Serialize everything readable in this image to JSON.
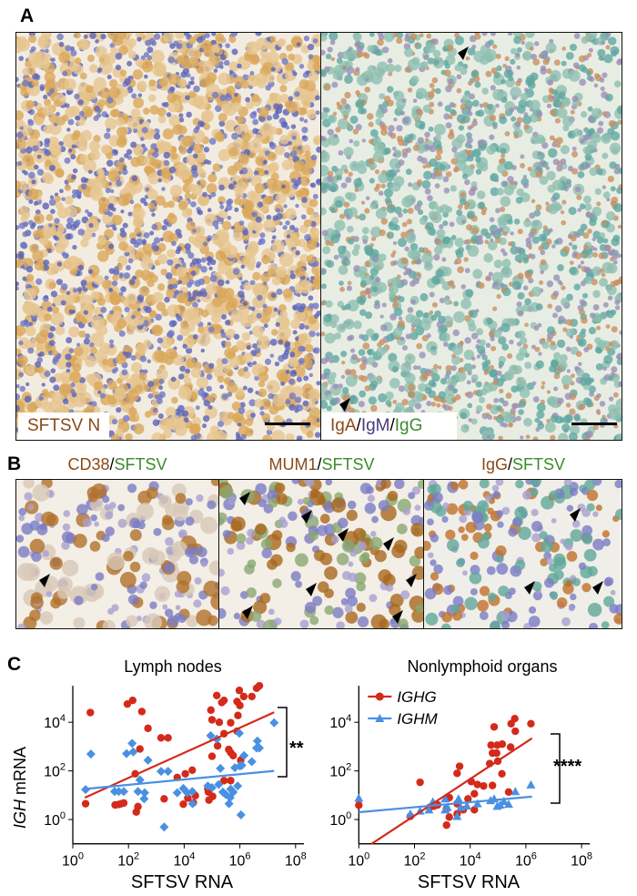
{
  "panels": {
    "A": {
      "label": "A",
      "left_tag": "SFTSV N",
      "right_tag": {
        "a": "IgA",
        "sep1": "/",
        "m": "IgM",
        "sep2": "/",
        "g": "IgG"
      }
    },
    "B": {
      "label": "B",
      "images": [
        {
          "marker": "CD38",
          "sep": "/",
          "virus": "SFTSV"
        },
        {
          "marker": "MUM1",
          "sep": "/",
          "virus": "SFTSV"
        },
        {
          "marker": "IgG",
          "sep": "/",
          "virus": "SFTSV"
        }
      ]
    },
    "C": {
      "label": "C"
    }
  },
  "colors": {
    "IGHG": "#d42a1a",
    "IGHM": "#4a90e2",
    "stain_brown": "#8a4a17",
    "stain_green": "#3d8a2e"
  },
  "chart_data": [
    {
      "type": "scatter",
      "title": "Lymph nodes",
      "xlabel": "SFTSV RNA",
      "ylabel_italic": "IGH",
      "ylabel_rest": " mRNA",
      "xscale": "log",
      "yscale": "log",
      "xlim_log10": [
        0,
        8
      ],
      "ylim_log10": [
        -1,
        5.5
      ],
      "xticks": [
        {
          "exp": "0"
        },
        {
          "exp": "2"
        },
        {
          "exp": "4"
        },
        {
          "exp": "6"
        },
        {
          "exp": "8"
        }
      ],
      "yticks": [
        {
          "exp": "0"
        },
        {
          "exp": "2"
        },
        {
          "exp": "4"
        }
      ],
      "significance": "**",
      "legend": null,
      "series": [
        {
          "name": "IGHG",
          "marker": "circle",
          "color": "#d42a1a",
          "fit_log10": [
            [
              0.43,
              0.9
            ],
            [
              7.23,
              4.41
            ]
          ],
          "points_log10": [
            [
              0.46,
              0.65
            ],
            [
              0.63,
              4.4
            ],
            [
              1.96,
              4.75
            ],
            [
              2.15,
              4.9
            ],
            [
              2.48,
              4.44
            ],
            [
              2.7,
              3.75
            ],
            [
              3.17,
              3.36
            ],
            [
              3.42,
              3.36
            ],
            [
              2.41,
              2.9
            ],
            [
              2.24,
              1.88
            ],
            [
              2.34,
              0.53
            ],
            [
              2.28,
              0.31
            ],
            [
              1.52,
              0.6
            ],
            [
              1.65,
              0.62
            ],
            [
              1.74,
              0.65
            ],
            [
              1.83,
              0.68
            ],
            [
              3.28,
              0.85
            ],
            [
              3.75,
              1.73
            ],
            [
              4.04,
              1.88
            ],
            [
              4.29,
              2.03
            ],
            [
              3.97,
              0.63
            ],
            [
              4.13,
              0.88
            ],
            [
              4.33,
              0.69
            ],
            [
              4.4,
              0.98
            ],
            [
              4.85,
              1.25
            ],
            [
              4.87,
              1.13
            ],
            [
              4.89,
              0.8
            ],
            [
              5.02,
              0.95
            ],
            [
              4.96,
              4.5
            ],
            [
              5.0,
              4.1
            ],
            [
              5.26,
              4.0
            ],
            [
              5.17,
              5.1
            ],
            [
              5.35,
              4.81
            ],
            [
              5.43,
              4.9
            ],
            [
              5.2,
              3.03
            ],
            [
              5.0,
              2.6
            ],
            [
              5.43,
              3.53
            ],
            [
              5.6,
              2.88
            ],
            [
              5.67,
              2.75
            ],
            [
              5.76,
              2.63
            ],
            [
              5.67,
              3.98
            ],
            [
              5.9,
              4.85
            ],
            [
              5.98,
              5.31
            ],
            [
              6.0,
              4.69
            ],
            [
              5.93,
              4.28
            ],
            [
              5.9,
              3.63
            ],
            [
              5.43,
              1.6
            ],
            [
              5.67,
              1.6
            ],
            [
              6.03,
              2.44
            ],
            [
              6.14,
              5.06
            ],
            [
              6.43,
              5.06
            ],
            [
              6.6,
              5.4
            ],
            [
              6.7,
              5.5
            ]
          ]
        },
        {
          "name": "IGHM",
          "marker": "diamond",
          "color": "#4a90e2",
          "fit_log10": [
            [
              0.38,
              1.25
            ],
            [
              7.23,
              2.0
            ]
          ],
          "points_log10": [
            [
              0.46,
              1.23
            ],
            [
              0.65,
              2.69
            ],
            [
              1.5,
              1.15
            ],
            [
              1.65,
              1.15
            ],
            [
              1.83,
              1.15
            ],
            [
              1.93,
              2.71
            ],
            [
              2.13,
              3.13
            ],
            [
              2.17,
              2.78
            ],
            [
              2.41,
              1.63
            ],
            [
              2.34,
              1.15
            ],
            [
              2.58,
              1.1
            ],
            [
              2.56,
              0.85
            ],
            [
              2.7,
              2.44
            ],
            [
              3.17,
              1.98
            ],
            [
              3.42,
              1.98
            ],
            [
              3.28,
              -0.31
            ],
            [
              3.75,
              1.1
            ],
            [
              3.97,
              1.28
            ],
            [
              4.11,
              1.1
            ],
            [
              4.29,
              1.15
            ],
            [
              4.3,
              0.65
            ],
            [
              4.95,
              3.45
            ],
            [
              5.17,
              3.31
            ],
            [
              4.85,
              1.38
            ],
            [
              5.0,
              1.31
            ],
            [
              5.24,
              1.44
            ],
            [
              5.3,
              2.1
            ],
            [
              5.39,
              1.13
            ],
            [
              5.49,
              1.03
            ],
            [
              5.61,
              0.65
            ],
            [
              5.67,
              1.25
            ],
            [
              5.76,
              1.13
            ],
            [
              5.65,
              0.9
            ],
            [
              5.82,
              2.13
            ],
            [
              5.92,
              1.38
            ],
            [
              5.98,
              3.55
            ],
            [
              6.04,
              0.19
            ],
            [
              6.0,
              2.2
            ],
            [
              6.07,
              2.23
            ],
            [
              6.15,
              2.63
            ],
            [
              6.43,
              2.38
            ],
            [
              6.63,
              3.23
            ],
            [
              6.7,
              2.94
            ],
            [
              6.6,
              2.94
            ],
            [
              7.23,
              3.98
            ]
          ]
        }
      ]
    },
    {
      "type": "scatter",
      "title": "Nonlymphoid organs",
      "xlabel": "SFTSV RNA",
      "xscale": "log",
      "yscale": "log",
      "xlim_log10": [
        0,
        8
      ],
      "ylim_log10": [
        -1,
        5.5
      ],
      "xticks": [
        {
          "exp": "0"
        },
        {
          "exp": "2"
        },
        {
          "exp": "4"
        },
        {
          "exp": "6"
        },
        {
          "exp": "8"
        }
      ],
      "yticks": [
        {
          "exp": "0"
        },
        {
          "exp": "2"
        },
        {
          "exp": "4"
        }
      ],
      "significance": "****",
      "legend": "top-left",
      "series": [
        {
          "name": "IGHG",
          "marker": "circle",
          "color": "#d42a1a",
          "fit_log10": [
            [
              0.46,
              -1.0
            ],
            [
              6.22,
              3.34
            ]
          ],
          "points_log10": [
            [
              0,
              0.59
            ],
            [
              2.2,
              1.53
            ],
            [
              1.85,
              0.13
            ],
            [
              2.55,
              0.5
            ],
            [
              2.7,
              0.55
            ],
            [
              2.83,
              0.6
            ],
            [
              3.15,
              0.44
            ],
            [
              3.15,
              -0.23
            ],
            [
              3.25,
              0.1
            ],
            [
              3.25,
              0.9
            ],
            [
              3.53,
              1.9
            ],
            [
              3.62,
              2.19
            ],
            [
              3.53,
              0.65
            ],
            [
              3.53,
              0.23
            ],
            [
              3.75,
              0.4
            ],
            [
              3.92,
              0.85
            ],
            [
              4.04,
              1.56
            ],
            [
              4.15,
              1.06
            ],
            [
              4.26,
              1.44
            ],
            [
              4.15,
              0.4
            ],
            [
              4.48,
              1.38
            ],
            [
              4.7,
              2.3
            ],
            [
              4.8,
              1.4
            ],
            [
              4.75,
              3.06
            ],
            [
              4.86,
              3.81
            ],
            [
              4.8,
              2.73
            ],
            [
              4.95,
              2.73
            ],
            [
              4.97,
              3.06
            ],
            [
              4.99,
              2.4
            ],
            [
              5.15,
              3.1
            ],
            [
              5.14,
              1.88
            ],
            [
              5.38,
              1.13
            ],
            [
              5.45,
              2.98
            ],
            [
              5.47,
              3.94
            ],
            [
              5.6,
              4.15
            ],
            [
              5.62,
              3.63
            ],
            [
              6.18,
              3.94
            ]
          ]
        },
        {
          "name": "IGHM",
          "marker": "triangle",
          "color": "#4a90e2",
          "fit_log10": [
            [
              0,
              0.3
            ],
            [
              6.22,
              0.94
            ]
          ],
          "points_log10": [
            [
              0,
              0.88
            ],
            [
              1.85,
              0.23
            ],
            [
              2.2,
              0.35
            ],
            [
              2.52,
              0.4
            ],
            [
              2.66,
              0.73
            ],
            [
              3.1,
              0.85
            ],
            [
              3.1,
              0.4
            ],
            [
              3.18,
              0.5
            ],
            [
              3.53,
              0.13
            ],
            [
              3.58,
              0.85
            ],
            [
              3.66,
              0.5
            ],
            [
              3.88,
              0.56
            ],
            [
              4.26,
              0.65
            ],
            [
              4.73,
              0.78
            ],
            [
              4.86,
              0.85
            ],
            [
              4.97,
              0.55
            ],
            [
              5.08,
              0.6
            ],
            [
              5.21,
              0.75
            ],
            [
              5.38,
              0.63
            ],
            [
              5.62,
              1.15
            ],
            [
              6.18,
              1.43
            ]
          ]
        }
      ]
    }
  ]
}
